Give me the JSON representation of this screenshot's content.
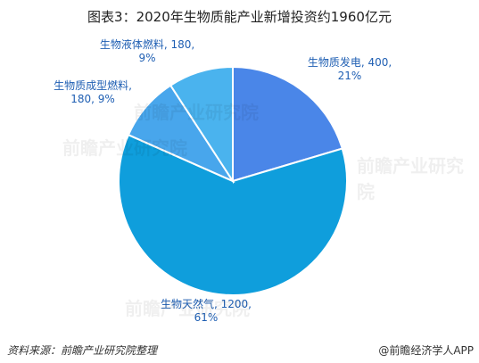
{
  "chart_data": {
    "type": "pie",
    "title": "图表3：2020年生物质能产业新增投资约1960亿元",
    "slices": [
      {
        "label": "生物质发电",
        "value": 400,
        "percent": "21%",
        "color": "#4a86e8"
      },
      {
        "label": "生物天然气",
        "value": 1200,
        "percent": "61%",
        "color": "#0f9edc"
      },
      {
        "label": "生物质成型燃料",
        "value": 180,
        "percent": "9%",
        "color": "#48a6ec"
      },
      {
        "label": "生物液体燃料",
        "value": 180,
        "percent": "9%",
        "color": "#4ab3ee"
      }
    ],
    "data_labels": [
      {
        "line1": "生物质发电, 400,",
        "line2": "21%"
      },
      {
        "line1": "生物天然气, 1200,",
        "line2": "61%"
      },
      {
        "line1": "生物质成型燃料,",
        "line2": "180, 9%"
      },
      {
        "line1": "生物液体燃料, 180,",
        "line2": "9%"
      }
    ],
    "label_color": "#1f5fb3"
  },
  "watermark_text": "前瞻产业研究院",
  "source_text": "资料来源：前瞻产业研究院整理",
  "brand_text": "@前瞻经济学人APP"
}
